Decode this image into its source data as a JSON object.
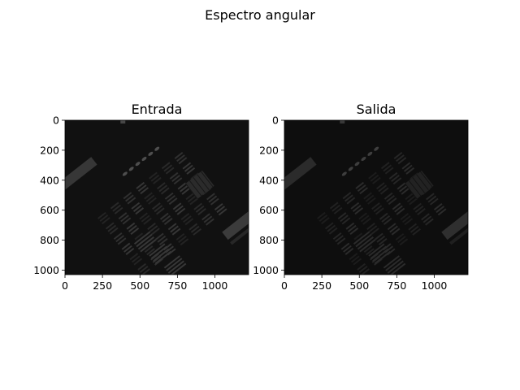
{
  "figure": {
    "suptitle": "Espectro angular"
  },
  "chart_data": [
    {
      "type": "heatmap",
      "title": "Entrada",
      "colormap": "gray",
      "xlabel": "",
      "ylabel": "",
      "xlim": [
        0,
        1225
      ],
      "ylim": [
        1030,
        0
      ],
      "xticks": [
        0,
        250,
        500,
        750,
        1000
      ],
      "yticks": [
        0,
        200,
        400,
        600,
        800,
        1000
      ],
      "description_brightness": "dim",
      "max_gray": 78
    },
    {
      "type": "heatmap",
      "title": "Salida",
      "colormap": "gray",
      "xlabel": "",
      "ylabel": "",
      "xlim": [
        0,
        1225
      ],
      "ylim": [
        1030,
        0
      ],
      "xticks": [
        0,
        250,
        500,
        750,
        1000
      ],
      "yticks": [
        0,
        200,
        400,
        600,
        800,
        1000
      ],
      "description_brightness": "darker",
      "max_gray": 62
    }
  ]
}
